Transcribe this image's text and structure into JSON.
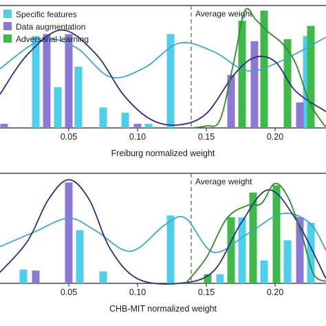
{
  "chart_data": [
    {
      "type": "bar",
      "xlabel": "Freiburg normalized weight",
      "ylabel": "",
      "xlim": [
        0.0,
        0.237
      ],
      "ylim": [
        0,
        12
      ],
      "xticks": [
        0.05,
        0.1,
        0.15,
        0.2
      ],
      "xtick_labels": [
        "0.05",
        "0.10",
        "0.15",
        "0.20"
      ],
      "avg_line": {
        "x": 0.139,
        "label": "Average weight"
      },
      "legend": {
        "position": "top-left",
        "entries": [
          {
            "name": "Specific features",
            "color": "#4dcfe8"
          },
          {
            "name": "Data augmentation",
            "color": "#8d78d6"
          },
          {
            "name": "Adversarial learning",
            "color": "#3fb94a"
          }
        ]
      },
      "series": [
        {
          "name": "Specific features",
          "color": "#4dcfe8",
          "x": [
            0.026,
            0.042,
            0.057,
            0.075,
            0.091,
            0.108,
            0.124,
            0.176,
            0.223
          ],
          "values": [
            9,
            4,
            6,
            2,
            1.5,
            0.4,
            9.2,
            2.5,
            9
          ]
        },
        {
          "name": "Data augmentation",
          "color": "#8d78d6",
          "x": [
            0.003,
            0.034,
            0.05,
            0.1,
            0.168,
            0.185,
            0.218
          ],
          "values": [
            0.4,
            9.2,
            9.2,
            0.4,
            5.2,
            8.5,
            2.5
          ]
        },
        {
          "name": "Adversarial learning",
          "color": "#3fb94a",
          "x": [
            0.176,
            0.192,
            0.209,
            0.226
          ],
          "values": [
            10.5,
            11.5,
            8.7,
            10.0
          ]
        }
      ],
      "curves": [
        {
          "name": "Specific features",
          "color": "#3aa9d0",
          "x": [
            0.0,
            0.03,
            0.055,
            0.08,
            0.105,
            0.13,
            0.155,
            0.18,
            0.205,
            0.237
          ],
          "y": [
            5.8,
            8.6,
            7.9,
            5.0,
            5.9,
            8.3,
            7.5,
            5.6,
            6.6,
            8.9
          ]
        },
        {
          "name": "Data augmentation",
          "color": "#2b2a8c",
          "x": [
            0.0,
            0.02,
            0.045,
            0.07,
            0.09,
            0.11,
            0.13,
            0.15,
            0.17,
            0.185,
            0.2,
            0.215,
            0.237
          ],
          "y": [
            3.3,
            7.2,
            9.6,
            7.2,
            3.2,
            0.8,
            0.3,
            1.4,
            5.2,
            6.9,
            6.5,
            3.6,
            1.6
          ]
        },
        {
          "name": "Adversarial learning",
          "color": "#2f8a2a",
          "x": [
            0.14,
            0.15,
            0.16,
            0.17,
            0.178,
            0.186,
            0.195,
            0.205,
            0.215,
            0.225,
            0.235,
            0.237
          ],
          "y": [
            0.0,
            0.2,
            0.8,
            6.5,
            11.5,
            10.6,
            9.4,
            8.3,
            6.3,
            2.5,
            0.4,
            0.2
          ]
        }
      ]
    },
    {
      "type": "bar",
      "xlabel": "CHB-MIT normalized weight",
      "ylabel": "",
      "xlim": [
        0.0,
        0.237
      ],
      "ylim": [
        0,
        12
      ],
      "xticks": [
        0.05,
        0.1,
        0.15,
        0.2
      ],
      "xtick_labels": [
        "0.05",
        "0.10",
        "0.15",
        "0.20"
      ],
      "avg_line": {
        "x": 0.139,
        "label": "Average weight"
      },
      "series": [
        {
          "name": "Specific features",
          "color": "#4dcfe8",
          "x": [
            0.017,
            0.058,
            0.075,
            0.124,
            0.16,
            0.176,
            0.192,
            0.209,
            0.226
          ],
          "values": [
            1.5,
            5.8,
            1.3,
            7.4,
            1.0,
            7.2,
            2.5,
            4.7,
            6.6
          ]
        },
        {
          "name": "Data augmentation",
          "color": "#8d78d6",
          "x": [
            0.026,
            0.05,
            0.184,
            0.218
          ],
          "values": [
            1.4,
            11.0,
            5.8,
            7.2
          ]
        },
        {
          "name": "Adversarial learning",
          "color": "#3fb94a",
          "x": [
            0.151,
            0.168,
            0.184,
            0.201
          ],
          "values": [
            1.0,
            7.2,
            9.9,
            10.7
          ]
        }
      ],
      "curves": [
        {
          "name": "Specific features",
          "color": "#3aa9d0",
          "x": [
            0.0,
            0.025,
            0.05,
            0.07,
            0.095,
            0.12,
            0.135,
            0.155,
            0.18,
            0.205,
            0.225,
            0.237
          ],
          "y": [
            4.0,
            5.6,
            7.1,
            5.7,
            3.5,
            6.4,
            7.1,
            3.4,
            5.4,
            7.6,
            6.6,
            3.6
          ]
        },
        {
          "name": "Data augmentation",
          "color": "#2b2a8c",
          "x": [
            0.0,
            0.02,
            0.035,
            0.05,
            0.065,
            0.08,
            0.1,
            0.13,
            0.155,
            0.175,
            0.195,
            0.215,
            0.237
          ],
          "y": [
            1.2,
            4.6,
            9.1,
            11.3,
            9.1,
            3.8,
            0.5,
            0.0,
            1.3,
            6.5,
            10.2,
            7.0,
            0.5
          ]
        },
        {
          "name": "Adversarial learning",
          "color": "#2f8a2a",
          "x": [
            0.135,
            0.15,
            0.165,
            0.18,
            0.19,
            0.2,
            0.21,
            0.22,
            0.228,
            0.237
          ],
          "y": [
            0.0,
            2.8,
            7.1,
            8.5,
            8.7,
            10.9,
            9.2,
            5.0,
            1.0,
            0.2
          ]
        }
      ]
    }
  ]
}
